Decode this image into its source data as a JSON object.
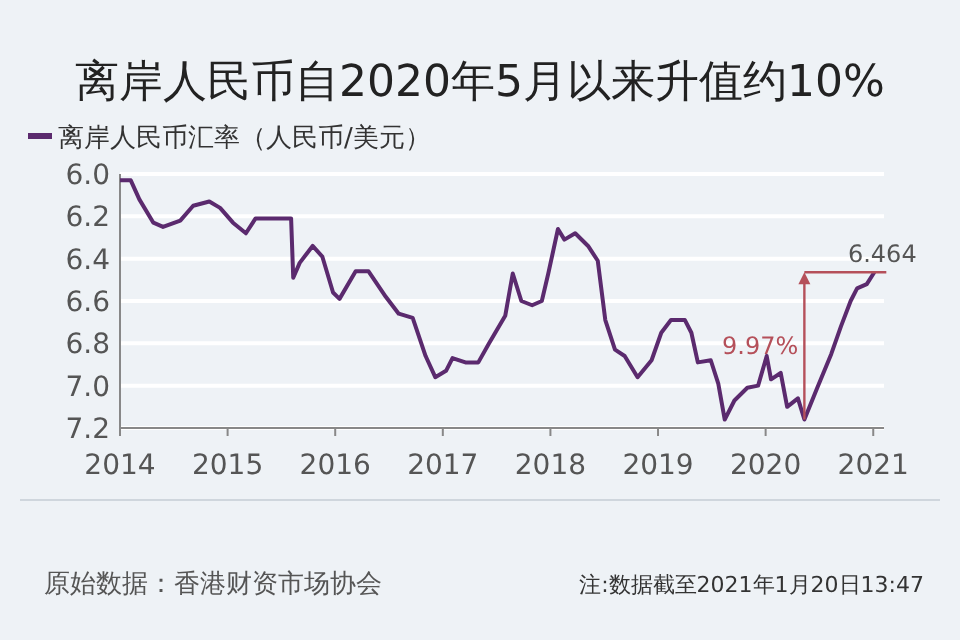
{
  "chart_data": {
    "type": "line",
    "title": "离岸人民币自2020年5月以来升值约10%",
    "x": [
      2014.0,
      2014.1,
      2014.18,
      2014.31,
      2014.4,
      2014.56,
      2014.68,
      2014.83,
      2014.93,
      2015.05,
      2015.17,
      2015.26,
      2015.44,
      2015.59,
      2015.61,
      2015.67,
      2015.79,
      2015.88,
      2015.98,
      2016.04,
      2016.19,
      2016.31,
      2016.47,
      2016.59,
      2016.72,
      2016.84,
      2016.93,
      2017.03,
      2017.09,
      2017.21,
      2017.33,
      2017.43,
      2017.58,
      2017.65,
      2017.73,
      2017.83,
      2017.92,
      2017.98,
      2018.07,
      2018.13,
      2018.23,
      2018.35,
      2018.44,
      2018.51,
      2018.6,
      2018.69,
      2018.81,
      2018.94,
      2019.03,
      2019.12,
      2019.25,
      2019.31,
      2019.37,
      2019.49,
      2019.56,
      2019.62,
      2019.71,
      2019.83,
      2019.93,
      2020.01,
      2020.05,
      2020.14,
      2020.2,
      2020.3,
      2020.36,
      2020.48,
      2020.61,
      2020.7,
      2020.79,
      2020.85,
      2020.94,
      2021.01
    ],
    "series": [
      {
        "name": "离岸人民币汇率（人民币/美元）",
        "color": "#5b2a6e",
        "values": [
          6.03,
          6.03,
          6.12,
          6.23,
          6.25,
          6.22,
          6.15,
          6.13,
          6.16,
          6.23,
          6.28,
          6.21,
          6.21,
          6.21,
          6.49,
          6.42,
          6.34,
          6.39,
          6.56,
          6.59,
          6.46,
          6.46,
          6.58,
          6.66,
          6.68,
          6.86,
          6.96,
          6.93,
          6.87,
          6.89,
          6.89,
          6.8,
          6.67,
          6.47,
          6.6,
          6.62,
          6.6,
          6.47,
          6.26,
          6.31,
          6.28,
          6.34,
          6.41,
          6.69,
          6.83,
          6.86,
          6.96,
          6.88,
          6.75,
          6.69,
          6.69,
          6.75,
          6.89,
          6.88,
          6.99,
          7.16,
          7.07,
          7.01,
          7.0,
          6.86,
          6.97,
          6.94,
          7.1,
          7.06,
          7.16,
          7.01,
          6.85,
          6.72,
          6.6,
          6.54,
          6.52,
          6.464
        ]
      }
    ],
    "xlim": [
      2014,
      2021.1
    ],
    "ylim": [
      7.2,
      6.0
    ],
    "xticks": [
      2014,
      2015,
      2016,
      2017,
      2018,
      2019,
      2020,
      2021
    ],
    "yticks": [
      {
        "value": 6.0,
        "label": "6.0"
      },
      {
        "value": 6.2,
        "label": "6.2"
      },
      {
        "value": 6.4,
        "label": "6.4"
      },
      {
        "value": 6.6,
        "label": "6.6"
      },
      {
        "value": 6.8,
        "label": "6.8"
      },
      {
        "value": 7.0,
        "label": "7.0"
      },
      {
        "value": 7.2,
        "label": "7.2"
      }
    ],
    "grid": "y",
    "legend": "top left",
    "annotations": [
      {
        "text": "6.464",
        "x": 2021.01,
        "y": 6.464
      },
      {
        "text": "9.97%",
        "x": 2020.36,
        "y": 7.16
      },
      "原始数据：香港财资市场协会",
      "注:数据截至2021年1月20日13:47"
    ]
  }
}
